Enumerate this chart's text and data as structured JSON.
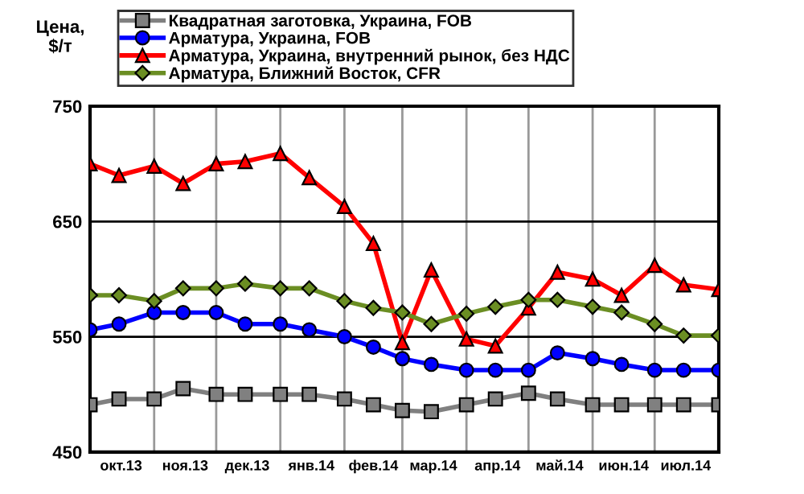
{
  "chart_data": {
    "type": "line",
    "ylabel": "Цена,\n$/т",
    "x": [
      "2013-10-01",
      "2013-10-15",
      "2013-11-01",
      "2013-11-15",
      "2013-12-01",
      "2013-12-15",
      "2014-01-01",
      "2014-01-15",
      "2014-02-01",
      "2014-02-15",
      "2014-03-01",
      "2014-03-15",
      "2014-04-01",
      "2014-04-15",
      "2014-05-01",
      "2014-05-15",
      "2014-06-01",
      "2014-06-15",
      "2014-07-01",
      "2014-07-15",
      "2014-08-01"
    ],
    "series": [
      {
        "name": "Квадратная заготовка, Украина, FOB",
        "color": "#808080",
        "marker": "square",
        "values": [
          491,
          496,
          496,
          505,
          500,
          500,
          500,
          500,
          496,
          491,
          486,
          485,
          491,
          496,
          501,
          496,
          491,
          491,
          491,
          491,
          491
        ]
      },
      {
        "name": "Арматура, Украина, FOB",
        "color": "#0000ff",
        "marker": "circle",
        "values": [
          556,
          561,
          571,
          571,
          571,
          561,
          561,
          556,
          550,
          541,
          531,
          526,
          521,
          521,
          521,
          536,
          531,
          526,
          521,
          521,
          521
        ]
      },
      {
        "name": "Арматура, Украина, внутренний рынок, без НДС",
        "color": "#ff0000",
        "marker": "triangle",
        "values": [
          700,
          690,
          698,
          683,
          700,
          702,
          709,
          688,
          663,
          631,
          545,
          608,
          548,
          542,
          575,
          606,
          600,
          586,
          612,
          595,
          591
        ]
      },
      {
        "name": "Арматура, Ближний Восток, CFR",
        "color": "#6b8e23",
        "marker": "diamond",
        "values": [
          586,
          586,
          581,
          592,
          592,
          596,
          592,
          592,
          581,
          575,
          571,
          561,
          570,
          576,
          582,
          582,
          576,
          571,
          561,
          551,
          551
        ]
      }
    ],
    "xlim": [
      "2013-10-01",
      "2014-08-01"
    ],
    "xticks": [
      {
        "value": "2013-10-16",
        "label": "окт.13"
      },
      {
        "value": "2013-11-01",
        "label": null
      },
      {
        "value": "2013-11-16",
        "label": "ноя.13"
      },
      {
        "value": "2013-12-01",
        "label": null
      },
      {
        "value": "2013-12-16",
        "label": "дек.13"
      },
      {
        "value": "2014-01-01",
        "label": null
      },
      {
        "value": "2014-01-16",
        "label": "янв.14"
      },
      {
        "value": "2014-02-01",
        "label": null
      },
      {
        "value": "2014-02-15",
        "label": "фев.14"
      },
      {
        "value": "2014-03-01",
        "label": null
      },
      {
        "value": "2014-03-16",
        "label": "мар.14"
      },
      {
        "value": "2014-04-01",
        "label": null
      },
      {
        "value": "2014-04-16",
        "label": "апр.14"
      },
      {
        "value": "2014-05-01",
        "label": null
      },
      {
        "value": "2014-05-16",
        "label": "май.14"
      },
      {
        "value": "2014-06-01",
        "label": null
      },
      {
        "value": "2014-06-16",
        "label": "июн.14"
      },
      {
        "value": "2014-07-01",
        "label": null
      },
      {
        "value": "2014-07-16",
        "label": "июл.14"
      }
    ],
    "ylim": [
      450,
      750
    ],
    "yticks": [
      450,
      550,
      650,
      750
    ],
    "grid": true,
    "legend": "top",
    "line_style": "solid"
  }
}
